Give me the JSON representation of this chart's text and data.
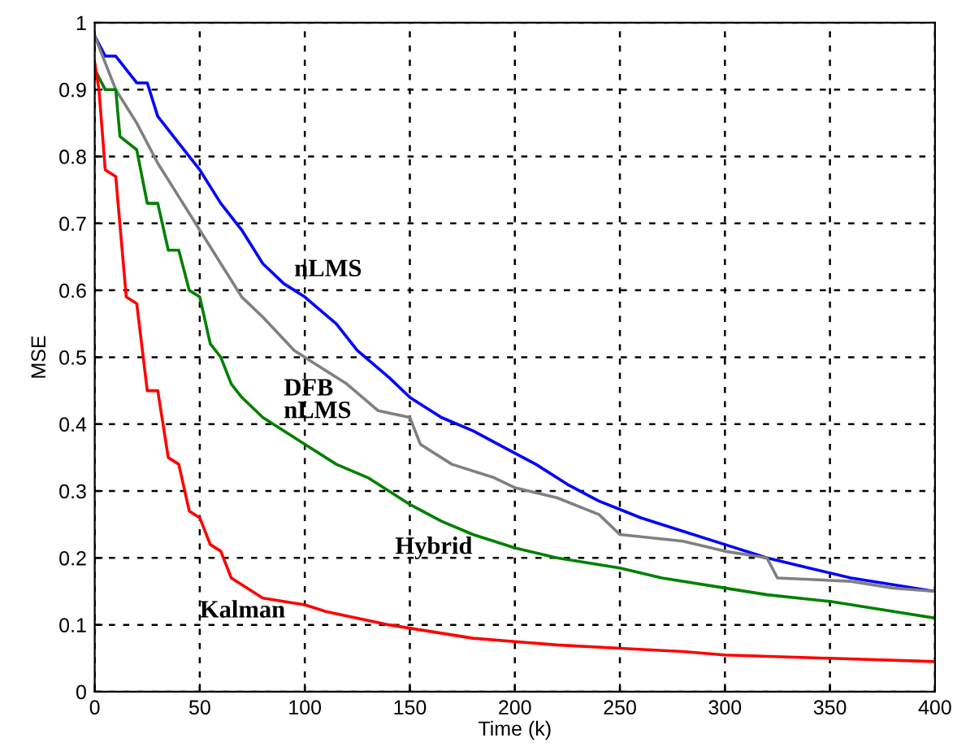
{
  "chart_data": {
    "type": "line",
    "xlabel": "Time (k)",
    "ylabel": "MSE",
    "xlim": [
      0,
      400
    ],
    "ylim": [
      0,
      1
    ],
    "xticks": [
      0,
      50,
      100,
      150,
      200,
      250,
      300,
      350,
      400
    ],
    "yticks": [
      0,
      0.1,
      0.2,
      0.3,
      0.4,
      0.5,
      0.6,
      0.7,
      0.8,
      0.9,
      1
    ],
    "grid": true,
    "line_style": "solid",
    "series": [
      {
        "name": "nLMS",
        "color": "#0000ff",
        "x": [
          0,
          5,
          10,
          20,
          25,
          30,
          40,
          50,
          60,
          70,
          80,
          90,
          100,
          115,
          125,
          140,
          150,
          165,
          180,
          195,
          210,
          225,
          240,
          260,
          280,
          300,
          320,
          340,
          360,
          380,
          400
        ],
        "values": [
          0.98,
          0.95,
          0.95,
          0.91,
          0.91,
          0.86,
          0.82,
          0.78,
          0.73,
          0.69,
          0.64,
          0.61,
          0.59,
          0.55,
          0.51,
          0.47,
          0.44,
          0.41,
          0.39,
          0.365,
          0.34,
          0.31,
          0.285,
          0.26,
          0.24,
          0.22,
          0.2,
          0.185,
          0.17,
          0.16,
          0.15
        ]
      },
      {
        "name": "DFB nLMS",
        "color": "#808080",
        "x": [
          0,
          10,
          20,
          30,
          40,
          50,
          60,
          70,
          80,
          95,
          105,
          120,
          135,
          150,
          155,
          170,
          190,
          200,
          220,
          240,
          250,
          280,
          300,
          320,
          325,
          360,
          380,
          400
        ],
        "values": [
          0.98,
          0.9,
          0.85,
          0.79,
          0.74,
          0.69,
          0.64,
          0.59,
          0.56,
          0.51,
          0.49,
          0.46,
          0.42,
          0.41,
          0.37,
          0.34,
          0.32,
          0.305,
          0.29,
          0.265,
          0.235,
          0.225,
          0.21,
          0.2,
          0.17,
          0.165,
          0.155,
          0.15
        ]
      },
      {
        "name": "Hybrid",
        "color": "#008000",
        "x": [
          0,
          5,
          10,
          12,
          20,
          25,
          30,
          35,
          40,
          45,
          50,
          55,
          60,
          65,
          70,
          80,
          90,
          100,
          115,
          130,
          140,
          150,
          165,
          180,
          200,
          220,
          250,
          270,
          300,
          320,
          350,
          370,
          400
        ],
        "values": [
          0.93,
          0.9,
          0.9,
          0.83,
          0.81,
          0.73,
          0.73,
          0.66,
          0.66,
          0.6,
          0.59,
          0.52,
          0.5,
          0.46,
          0.44,
          0.41,
          0.39,
          0.37,
          0.34,
          0.32,
          0.3,
          0.28,
          0.255,
          0.235,
          0.215,
          0.2,
          0.185,
          0.17,
          0.155,
          0.145,
          0.135,
          0.125,
          0.11
        ]
      },
      {
        "name": "Kalman",
        "color": "#ff0000",
        "x": [
          0,
          2,
          5,
          10,
          15,
          20,
          25,
          30,
          35,
          40,
          45,
          50,
          55,
          60,
          65,
          70,
          80,
          100,
          110,
          125,
          140,
          160,
          180,
          200,
          220,
          250,
          280,
          300,
          350,
          400
        ],
        "values": [
          0.94,
          0.9,
          0.78,
          0.77,
          0.59,
          0.58,
          0.45,
          0.45,
          0.35,
          0.34,
          0.27,
          0.26,
          0.22,
          0.21,
          0.17,
          0.16,
          0.14,
          0.13,
          0.12,
          0.11,
          0.1,
          0.09,
          0.08,
          0.075,
          0.07,
          0.065,
          0.06,
          0.055,
          0.05,
          0.045
        ]
      }
    ]
  }
}
